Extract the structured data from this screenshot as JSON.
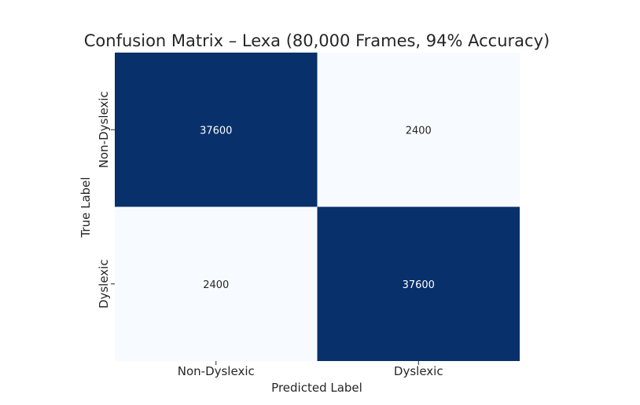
{
  "chart_data": {
    "type": "heatmap",
    "title": "Confusion Matrix – Lexa (80,000 Frames, 94% Accuracy)",
    "xlabel": "Predicted Label",
    "ylabel": "True Label",
    "x_categories": [
      "Non-Dyslexic",
      "Dyslexic"
    ],
    "y_categories": [
      "Non-Dyslexic",
      "Dyslexic"
    ],
    "values": [
      [
        37600,
        2400
      ],
      [
        2400,
        37600
      ]
    ],
    "colormap": "Blues",
    "color_low": "#f7fbff",
    "color_high": "#08306b",
    "text_color_dark_cell": "#ffffff",
    "text_color_light_cell": "#262626",
    "colorbar": false,
    "grid": false
  }
}
